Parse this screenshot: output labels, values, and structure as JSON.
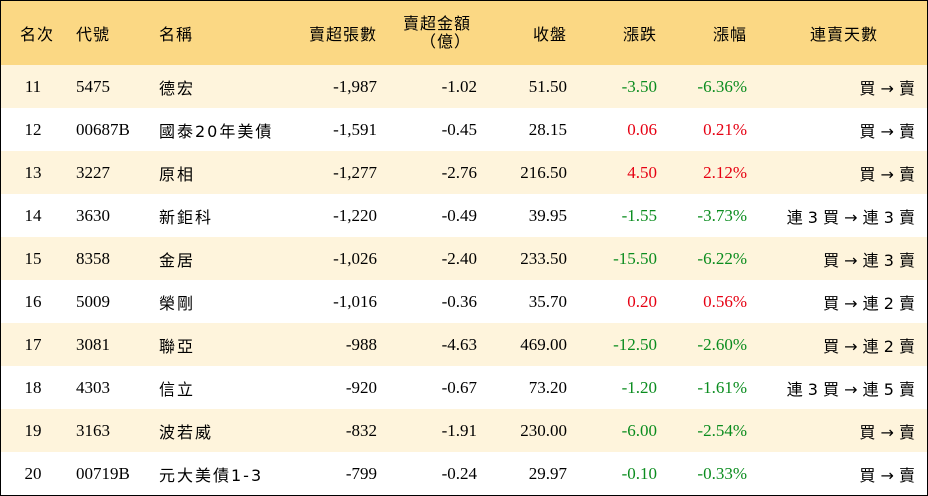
{
  "colors": {
    "header_bg": "#fbd884",
    "shade_row": "#fef4dc",
    "down": "#0a8c1e",
    "up": "#e60012"
  },
  "header": {
    "rank": "名次",
    "code": "代號",
    "name": "名稱",
    "sell_lots": "賣超張數",
    "sell_amount_line1": "賣超金額",
    "sell_amount_line2": "（億）",
    "close": "收盤",
    "change": "漲跌",
    "pct": "漲幅",
    "streak": "連賣天數"
  },
  "rows": [
    {
      "rank": "11",
      "code": "5475",
      "name": "德宏",
      "sell_lots": "-1,987",
      "sell_amount": "-1.02",
      "close": "51.50",
      "change": "-3.50",
      "pct": "-6.36%",
      "direction": "down",
      "streak": "買 → 賣"
    },
    {
      "rank": "12",
      "code": "00687B",
      "name": "國泰20年美債",
      "sell_lots": "-1,591",
      "sell_amount": "-0.45",
      "close": "28.15",
      "change": "0.06",
      "pct": "0.21%",
      "direction": "up",
      "streak": "買 → 賣"
    },
    {
      "rank": "13",
      "code": "3227",
      "name": "原相",
      "sell_lots": "-1,277",
      "sell_amount": "-2.76",
      "close": "216.50",
      "change": "4.50",
      "pct": "2.12%",
      "direction": "up",
      "streak": "買 → 賣"
    },
    {
      "rank": "14",
      "code": "3630",
      "name": "新鉅科",
      "sell_lots": "-1,220",
      "sell_amount": "-0.49",
      "close": "39.95",
      "change": "-1.55",
      "pct": "-3.73%",
      "direction": "down",
      "streak": "連 3 買 → 連 3 賣"
    },
    {
      "rank": "15",
      "code": "8358",
      "name": "金居",
      "sell_lots": "-1,026",
      "sell_amount": "-2.40",
      "close": "233.50",
      "change": "-15.50",
      "pct": "-6.22%",
      "direction": "down",
      "streak": "買 → 連 3 賣"
    },
    {
      "rank": "16",
      "code": "5009",
      "name": "榮剛",
      "sell_lots": "-1,016",
      "sell_amount": "-0.36",
      "close": "35.70",
      "change": "0.20",
      "pct": "0.56%",
      "direction": "up",
      "streak": "買 → 連 2 賣"
    },
    {
      "rank": "17",
      "code": "3081",
      "name": "聯亞",
      "sell_lots": "-988",
      "sell_amount": "-4.63",
      "close": "469.00",
      "change": "-12.50",
      "pct": "-2.60%",
      "direction": "down",
      "streak": "買 → 連 2 賣"
    },
    {
      "rank": "18",
      "code": "4303",
      "name": "信立",
      "sell_lots": "-920",
      "sell_amount": "-0.67",
      "close": "73.20",
      "change": "-1.20",
      "pct": "-1.61%",
      "direction": "down",
      "streak": "連 3 買 → 連 5 賣"
    },
    {
      "rank": "19",
      "code": "3163",
      "name": "波若威",
      "sell_lots": "-832",
      "sell_amount": "-1.91",
      "close": "230.00",
      "change": "-6.00",
      "pct": "-2.54%",
      "direction": "down",
      "streak": "買 → 賣"
    },
    {
      "rank": "20",
      "code": "00719B",
      "name": "元大美債1-3",
      "sell_lots": "-799",
      "sell_amount": "-0.24",
      "close": "29.97",
      "change": "-0.10",
      "pct": "-0.33%",
      "direction": "down",
      "streak": "買 → 賣"
    }
  ]
}
